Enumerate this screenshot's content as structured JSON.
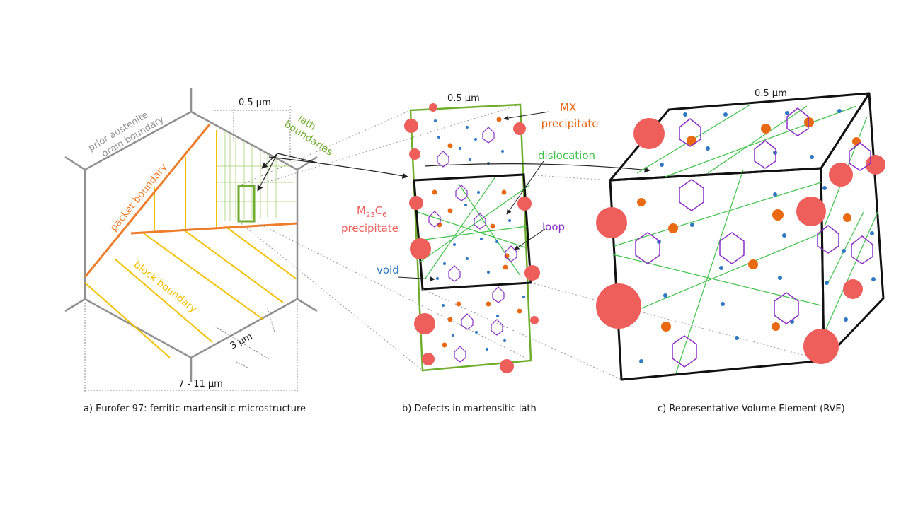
{
  "colors": {
    "grain": "#8f8f8f",
    "packet": "#ee7d2a",
    "block": "#f3c000",
    "lath": "#6fae2c",
    "dislocation": "#3fc24a",
    "m23c6": "#ee5f5c",
    "mx": "#ea6a14",
    "void": "#2f78c4",
    "loop": "#8a2fc6",
    "frame": "#111111",
    "leader": "#8a8a8a"
  },
  "panel_a": {
    "caption": "a) Eurofer 97: ferritic-martensitic microstructure",
    "labels": {
      "prior_austenite": [
        "prior austenite",
        "grain boundary"
      ],
      "packet_boundary": "packet boundary",
      "block_boundary": "block boundary",
      "lath_boundaries": [
        "lath",
        "boundaries"
      ]
    },
    "dims": {
      "lath_width": "0.5 µm",
      "block_width": "3 µm",
      "grain_width": "7 - 11 µm"
    }
  },
  "panel_b": {
    "caption": "b) Defects in martensitic lath",
    "dim_width": "0.5 µm",
    "labels": {
      "mx": [
        "MX",
        "precipitate"
      ],
      "dislocation": "dislocation",
      "m23c6_main": "M",
      "m23c6_sub1": "23",
      "m23c6_mid": "C",
      "m23c6_sub2": "6",
      "m23c6_line2": "precipitate",
      "loop": "loop",
      "void": "void"
    }
  },
  "panel_c": {
    "caption": "c) Representative Volume Element (RVE)",
    "dim_width": "0.5 µm"
  }
}
